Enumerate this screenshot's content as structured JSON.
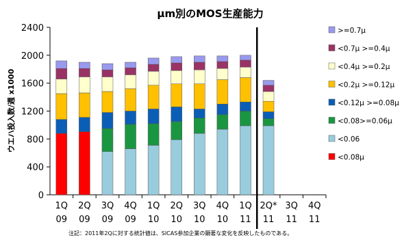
{
  "chart_data": {
    "type": "bar",
    "stacked": true,
    "title": "µm別のMOS生産能力",
    "ylabel": "ウエハ投入数/週 x1000",
    "xlabel": "",
    "ylim": [
      0,
      2400
    ],
    "yticks": [
      0,
      400,
      800,
      1200,
      1600,
      2000,
      2400
    ],
    "grid": false,
    "legend_position": "right",
    "categories": [
      [
        "1Q",
        "09"
      ],
      [
        "2Q",
        "09"
      ],
      [
        "3Q",
        "09"
      ],
      [
        "4Q",
        "09"
      ],
      [
        "1Q",
        "10"
      ],
      [
        "2Q",
        "10"
      ],
      [
        "3Q",
        "10"
      ],
      [
        "4Q",
        "10"
      ],
      [
        "1Q",
        "11"
      ],
      [
        "2Q*",
        "11"
      ],
      [
        "3Q",
        "11"
      ],
      [
        "4Q",
        "11"
      ]
    ],
    "series": [
      {
        "name": "<0.08µ",
        "color": "#ff0000",
        "values": [
          880,
          905,
          0,
          0,
          0,
          0,
          0,
          0,
          0,
          0,
          null,
          null
        ]
      },
      {
        "name": "<0.06",
        "color": "#99ccdd",
        "values": [
          0,
          0,
          620,
          660,
          710,
          790,
          880,
          940,
          990,
          990,
          null,
          null
        ]
      },
      {
        "name": "<0.08>=0.06µ",
        "color": "#1a9641",
        "values": [
          0,
          0,
          330,
          350,
          310,
          260,
          220,
          210,
          210,
          100,
          null,
          null
        ]
      },
      {
        "name": "<0.12µ >=0.08µ",
        "color": "#0b5eb5",
        "values": [
          200,
          205,
          230,
          190,
          210,
          210,
          130,
          150,
          130,
          100,
          null,
          null
        ]
      },
      {
        "name": "<0.2µ >=0.12µ",
        "color": "#ffc000",
        "values": [
          370,
          350,
          300,
          320,
          340,
          330,
          360,
          350,
          350,
          150,
          null,
          null
        ]
      },
      {
        "name": "<0.4µ >=0.2µ",
        "color": "#ffffcc",
        "values": [
          210,
          230,
          210,
          200,
          200,
          190,
          200,
          160,
          150,
          140,
          null,
          null
        ]
      },
      {
        "name": "<0.7µ >=0.4µ",
        "color": "#993366",
        "values": [
          150,
          120,
          100,
          100,
          100,
          110,
          110,
          100,
          100,
          90,
          null,
          null
        ]
      },
      {
        "name": ">=0.7µ",
        "color": "#9999ee",
        "values": [
          110,
          90,
          90,
          80,
          90,
          90,
          90,
          80,
          70,
          70,
          null,
          null
        ]
      }
    ],
    "divider_after_category": 8
  },
  "footnote": "注記：2011年2Qに対する統計値は、SICAS参加企業の顕著な変化を反映したものである。"
}
